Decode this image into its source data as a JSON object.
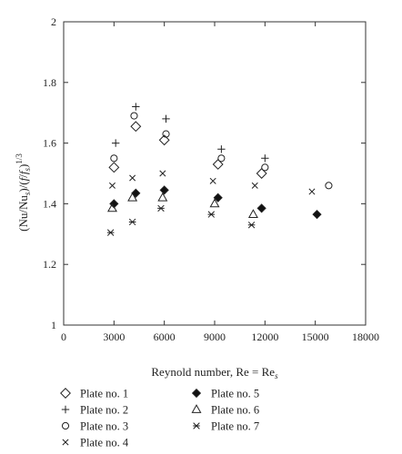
{
  "chart_data": {
    "type": "scatter",
    "xlabel": "Reynold number, Re = Re",
    "xlabel_sub": "s",
    "ylabel_parts": {
      "open": "(Nu/Nu",
      "sub_s1": "s",
      "mid": ")/(",
      "f1": "f",
      "slash": "/",
      "f2": "f",
      "sub_s2": "s",
      "close": ")",
      "exp": "1/3"
    },
    "xlim": [
      0,
      18000
    ],
    "ylim": [
      1,
      2
    ],
    "x_ticks": [
      0,
      3000,
      6000,
      9000,
      12000,
      15000,
      18000
    ],
    "y_ticks": [
      1,
      1.2,
      1.4,
      1.6,
      1.8,
      2
    ],
    "x_tick_labels": [
      "0",
      "3000",
      "6000",
      "9000",
      "12000",
      "15000",
      "18000"
    ],
    "y_tick_labels": [
      "1",
      "1.2",
      "1.4",
      "1.6",
      "1.8",
      "2"
    ],
    "grid": false,
    "legend_placement": "below",
    "series": [
      {
        "name": "Plate no. 1",
        "marker": "diamond-open",
        "x": [
          3000,
          4300,
          6000,
          9200,
          11800
        ],
        "y": [
          1.52,
          1.655,
          1.61,
          1.53,
          1.5
        ]
      },
      {
        "name": "Plate no. 2",
        "marker": "plus",
        "x": [
          3100,
          4300,
          6100,
          9400,
          12000
        ],
        "y": [
          1.6,
          1.72,
          1.68,
          1.58,
          1.55
        ]
      },
      {
        "name": "Plate no. 3",
        "marker": "circle-open",
        "x": [
          3000,
          4200,
          6100,
          9400,
          12000,
          15800
        ],
        "y": [
          1.55,
          1.69,
          1.63,
          1.55,
          1.52,
          1.46
        ]
      },
      {
        "name": "Plate no. 4",
        "marker": "x",
        "x": [
          2900,
          4100,
          5900,
          8900,
          11400,
          14800
        ],
        "y": [
          1.46,
          1.485,
          1.5,
          1.475,
          1.46,
          1.44
        ]
      },
      {
        "name": "Plate no. 5",
        "marker": "diamond-filled",
        "x": [
          3000,
          4300,
          6000,
          9200,
          11800,
          15100
        ],
        "y": [
          1.4,
          1.435,
          1.445,
          1.42,
          1.385,
          1.365
        ]
      },
      {
        "name": "Plate no. 6",
        "marker": "triangle-open",
        "x": [
          2900,
          4100,
          5900,
          9000,
          11300
        ],
        "y": [
          1.385,
          1.42,
          1.42,
          1.4,
          1.365
        ]
      },
      {
        "name": "Plate no. 7",
        "marker": "asterisk",
        "x": [
          2800,
          4100,
          5800,
          8800,
          11200
        ],
        "y": [
          1.305,
          1.34,
          1.385,
          1.365,
          1.33
        ]
      }
    ]
  }
}
